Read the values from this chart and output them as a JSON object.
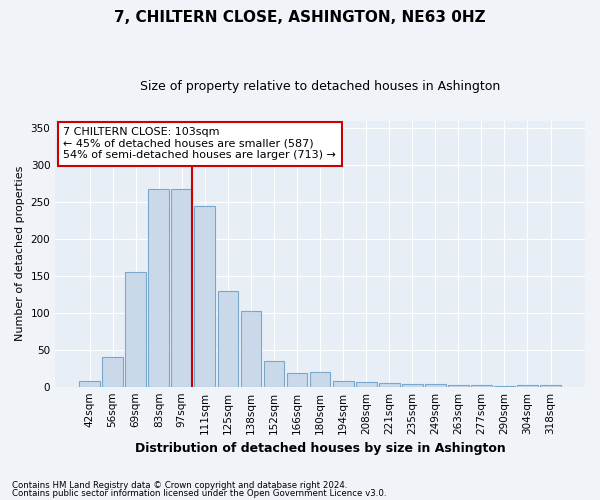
{
  "title": "7, CHILTERN CLOSE, ASHINGTON, NE63 0HZ",
  "subtitle": "Size of property relative to detached houses in Ashington",
  "xlabel": "Distribution of detached houses by size in Ashington",
  "ylabel": "Number of detached properties",
  "categories": [
    "42sqm",
    "56sqm",
    "69sqm",
    "83sqm",
    "97sqm",
    "111sqm",
    "125sqm",
    "138sqm",
    "152sqm",
    "166sqm",
    "180sqm",
    "194sqm",
    "208sqm",
    "221sqm",
    "235sqm",
    "249sqm",
    "263sqm",
    "277sqm",
    "290sqm",
    "304sqm",
    "318sqm"
  ],
  "values": [
    8,
    40,
    155,
    267,
    268,
    245,
    130,
    103,
    35,
    19,
    20,
    8,
    6,
    5,
    4,
    3,
    2,
    2,
    1,
    2,
    2
  ],
  "bar_color": "#c9d9ea",
  "bar_edge_color": "#7aa8cc",
  "annotation_text_line1": "7 CHILTERN CLOSE: 103sqm",
  "annotation_text_line2": "← 45% of detached houses are smaller (587)",
  "annotation_text_line3": "54% of semi-detached houses are larger (713) →",
  "annotation_box_facecolor": "#ffffff",
  "annotation_box_edgecolor": "#cc0000",
  "vline_color": "#cc0000",
  "footnote1": "Contains HM Land Registry data © Crown copyright and database right 2024.",
  "footnote2": "Contains public sector information licensed under the Open Government Licence v3.0.",
  "ylim": [
    0,
    360
  ],
  "yticks": [
    0,
    50,
    100,
    150,
    200,
    250,
    300,
    350
  ],
  "fig_facecolor": "#f0f4f8",
  "ax_facecolor": "#e8eef5",
  "grid_color": "#ffffff",
  "title_fontsize": 11,
  "subtitle_fontsize": 9,
  "ylabel_fontsize": 8,
  "xlabel_fontsize": 9,
  "tick_fontsize": 7.5,
  "annot_fontsize": 8
}
